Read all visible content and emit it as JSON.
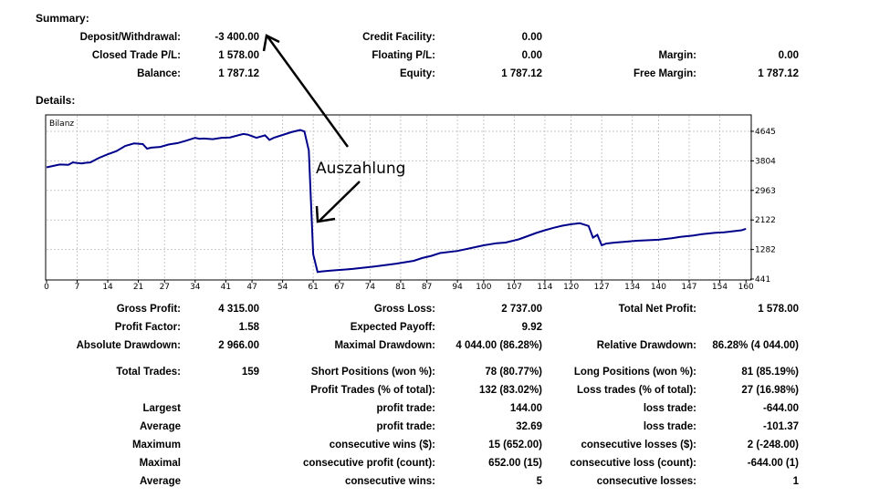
{
  "summary": {
    "title": "Summary:",
    "deposit_label": "Deposit/Withdrawal:",
    "deposit_value": "-3 400.00",
    "closed_label": "Closed Trade P/L:",
    "closed_value": "1 578.00",
    "balance_label": "Balance:",
    "balance_value": "1 787.12",
    "credit_label": "Credit Facility:",
    "credit_value": "0.00",
    "floating_label": "Floating P/L:",
    "floating_value": "0.00",
    "equity_label": "Equity:",
    "equity_value": "1 787.12",
    "margin_label": "Margin:",
    "margin_value": "0.00",
    "free_margin_label": "Free Margin:",
    "free_margin_value": "1 787.12"
  },
  "details": {
    "title": "Details:"
  },
  "chart_data": {
    "type": "line",
    "title": "Bilanz",
    "annotation": "Auszahlung",
    "colors": {
      "line": "#00008b",
      "grid": "#c8c8c8"
    },
    "xlim": [
      0,
      161
    ],
    "ylim": [
      441,
      5085
    ],
    "grid": true,
    "x_ticks": [
      0,
      7,
      14,
      21,
      27,
      34,
      41,
      47,
      54,
      61,
      67,
      74,
      81,
      87,
      94,
      100,
      107,
      114,
      120,
      127,
      134,
      140,
      147,
      154,
      160
    ],
    "y_ticks": [
      441,
      1282,
      2122,
      2963,
      3804,
      4645
    ],
    "series": [
      {
        "x": [
          0,
          3,
          5,
          6,
          8,
          9,
          10,
          12,
          14,
          16,
          18,
          20,
          22,
          23,
          24,
          26,
          28,
          30,
          32,
          34,
          35,
          36,
          38,
          40,
          42,
          45,
          46,
          48,
          50,
          51,
          52,
          54,
          56,
          58,
          59,
          60,
          61,
          62,
          63,
          65,
          70,
          75,
          80,
          84,
          86,
          88,
          90,
          94,
          97,
          100,
          103,
          105,
          108,
          110,
          112,
          114,
          116,
          118,
          120,
          122,
          124,
          125,
          126,
          127,
          128,
          130,
          132,
          135,
          140,
          143,
          145,
          148,
          150,
          153,
          155,
          157,
          159,
          160
        ],
        "y": [
          3620,
          3700,
          3690,
          3760,
          3730,
          3750,
          3760,
          3890,
          3990,
          4080,
          4230,
          4300,
          4280,
          4150,
          4180,
          4200,
          4270,
          4310,
          4380,
          4460,
          4430,
          4440,
          4420,
          4460,
          4470,
          4570,
          4550,
          4460,
          4530,
          4400,
          4460,
          4540,
          4620,
          4680,
          4640,
          4100,
          1150,
          640,
          660,
          680,
          730,
          800,
          880,
          960,
          1040,
          1100,
          1180,
          1240,
          1320,
          1400,
          1460,
          1480,
          1570,
          1660,
          1750,
          1830,
          1900,
          1960,
          2000,
          2030,
          1950,
          1620,
          1700,
          1400,
          1450,
          1480,
          1500,
          1530,
          1560,
          1600,
          1640,
          1680,
          1720,
          1760,
          1770,
          1800,
          1830,
          1870
        ]
      }
    ]
  },
  "stats": {
    "gross_profit_label": "Gross Profit:",
    "gross_profit_value": "4 315.00",
    "gross_loss_label": "Gross Loss:",
    "gross_loss_value": "2 737.00",
    "total_net_label": "Total Net Profit:",
    "total_net_value": "1 578.00",
    "profit_factor_label": "Profit Factor:",
    "profit_factor_value": "1.58",
    "expected_payoff_label": "Expected Payoff:",
    "expected_payoff_value": "9.92",
    "abs_dd_label": "Absolute Drawdown:",
    "abs_dd_value": "2 966.00",
    "max_dd_label": "Maximal Drawdown:",
    "max_dd_value": "4 044.00 (86.28%)",
    "rel_dd_label": "Relative Drawdown:",
    "rel_dd_value": "86.28% (4 044.00)",
    "total_trades_label": "Total Trades:",
    "total_trades_value": "159",
    "short_label": "Short Positions (won %):",
    "short_value": "78 (80.77%)",
    "long_label": "Long Positions (won %):",
    "long_value": "81 (85.19%)",
    "profit_trades_label": "Profit Trades (% of total):",
    "profit_trades_value": "132 (83.02%)",
    "loss_trades_label": "Loss trades (% of total):",
    "loss_trades_value": "27 (16.98%)",
    "largest_label": "Largest",
    "largest_pt_label": "profit trade:",
    "largest_pt_value": "144.00",
    "largest_lt_label": "loss trade:",
    "largest_lt_value": "-644.00",
    "average_label": "Average",
    "average_pt_label": "profit trade:",
    "average_pt_value": "32.69",
    "average_lt_label": "loss trade:",
    "average_lt_value": "-101.37",
    "maximum_label": "Maximum",
    "max_cw_label": "consecutive wins ($):",
    "max_cw_value": "15 (652.00)",
    "max_cl_label": "consecutive losses ($):",
    "max_cl_value": "2 (-248.00)",
    "maximal_label": "Maximal",
    "maximal_cp_label": "consecutive profit (count):",
    "maximal_cp_value": "652.00 (15)",
    "maximal_cl_label": "consecutive loss (count):",
    "maximal_cl_value": "-644.00 (1)",
    "average2_label": "Average",
    "avg_cw_label": "consecutive wins:",
    "avg_cw_value": "5",
    "avg_cl_label": "consecutive losses:",
    "avg_cl_value": "1"
  }
}
